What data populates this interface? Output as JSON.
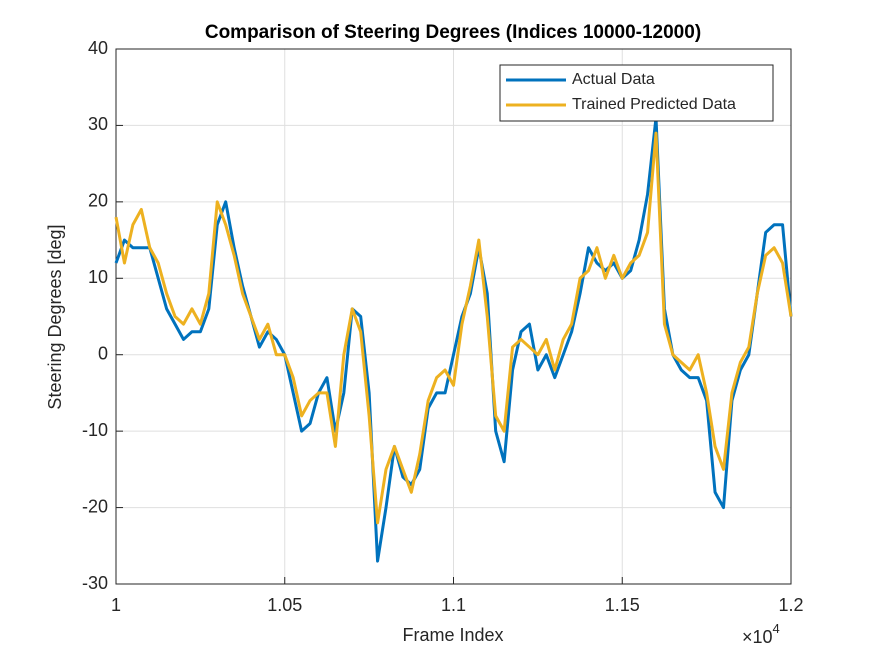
{
  "chart_data": {
    "type": "line",
    "title": "Comparison of Steering Degrees (Indices 10000-12000)",
    "xlabel": "Frame Index",
    "ylabel": "Steering Degrees [deg]",
    "x_exponent": {
      "base": "×10",
      "power": "4"
    },
    "x": [
      10000,
      10025,
      10050,
      10075,
      10100,
      10125,
      10150,
      10175,
      10200,
      10225,
      10250,
      10275,
      10300,
      10325,
      10350,
      10375,
      10400,
      10425,
      10450,
      10475,
      10500,
      10525,
      10550,
      10575,
      10600,
      10625,
      10650,
      10675,
      10700,
      10725,
      10750,
      10775,
      10800,
      10825,
      10850,
      10875,
      10900,
      10925,
      10950,
      10975,
      11000,
      11025,
      11050,
      11075,
      11100,
      11125,
      11150,
      11175,
      11200,
      11225,
      11250,
      11275,
      11300,
      11325,
      11350,
      11375,
      11400,
      11425,
      11450,
      11475,
      11500,
      11525,
      11550,
      11575,
      11600,
      11625,
      11650,
      11675,
      11700,
      11725,
      11750,
      11775,
      11800,
      11825,
      11850,
      11875,
      11900,
      11925,
      11950,
      11975,
      12000
    ],
    "series": [
      {
        "name": "Actual Data",
        "color": "#0072BD",
        "values": [
          12,
          15,
          14,
          14,
          14,
          10,
          6,
          4,
          2,
          3,
          3,
          6,
          17,
          20,
          14,
          9,
          5,
          1,
          3,
          2,
          0,
          -5,
          -10,
          -9,
          -5,
          -3,
          -10,
          -5,
          6,
          5,
          -5,
          -27,
          -20,
          -12,
          -16,
          -17,
          -15,
          -7,
          -5,
          -5,
          0,
          5,
          8,
          14,
          8,
          -10,
          -14,
          -2,
          3,
          4,
          -2,
          0,
          -3,
          0,
          3,
          8,
          14,
          12,
          11,
          12,
          10,
          11,
          15,
          21,
          31,
          6,
          0,
          -2,
          -3,
          -3,
          -6,
          -18,
          -20,
          -6,
          -2,
          0,
          8,
          16,
          17,
          17,
          5
        ]
      },
      {
        "name": "Trained Predicted Data",
        "color": "#EDB120",
        "values": [
          18,
          12,
          17,
          19,
          14,
          12,
          8,
          5,
          4,
          6,
          4,
          8,
          20,
          17,
          13,
          8,
          5,
          2,
          4,
          0,
          0,
          -3,
          -8,
          -6,
          -5,
          -5,
          -12,
          0,
          6,
          3,
          -8,
          -22,
          -15,
          -12,
          -15,
          -18,
          -13,
          -6,
          -3,
          -2,
          -4,
          4,
          9,
          15,
          5,
          -8,
          -10,
          1,
          2,
          1,
          0,
          2,
          -2,
          2,
          4,
          10,
          11,
          14,
          10,
          13,
          10,
          12,
          13,
          16,
          29,
          4,
          0,
          -1,
          -2,
          0,
          -5,
          -12,
          -15,
          -5,
          -1,
          1,
          8,
          13,
          14,
          12,
          5
        ]
      }
    ],
    "xlim": [
      10000,
      12000
    ],
    "xticks": [
      {
        "value": 10000,
        "label": "1"
      },
      {
        "value": 10500,
        "label": "1.05"
      },
      {
        "value": 11000,
        "label": "1.1"
      },
      {
        "value": 11500,
        "label": "1.15"
      },
      {
        "value": 12000,
        "label": "1.2"
      }
    ],
    "ylim": [
      -30,
      40
    ],
    "yticks": [
      -30,
      -20,
      -10,
      0,
      10,
      20,
      30,
      40
    ],
    "grid": true,
    "legend": "northeast"
  }
}
